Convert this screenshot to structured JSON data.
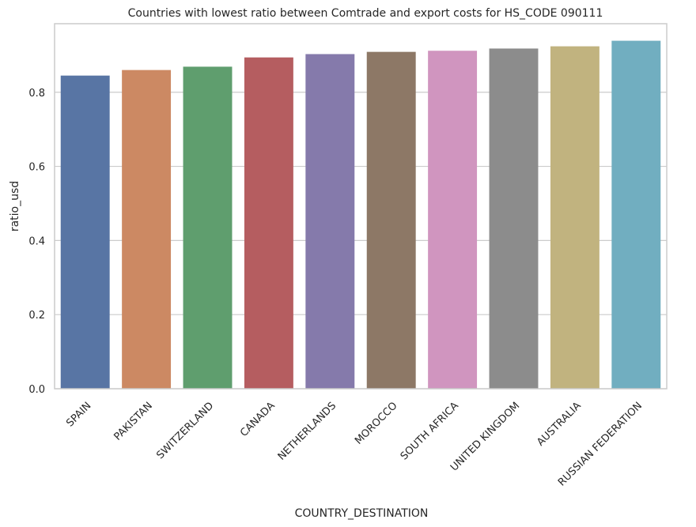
{
  "chart_data": {
    "type": "bar",
    "title": "Countries with lowest ratio between Comtrade and export costs for HS_CODE 090111",
    "xlabel": "COUNTRY_DESTINATION",
    "ylabel": "ratio_usd",
    "ylim": [
      0,
      0.985
    ],
    "yticks": [
      0.0,
      0.2,
      0.4,
      0.6,
      0.8
    ],
    "ytick_labels": [
      "0.0",
      "0.2",
      "0.4",
      "0.6",
      "0.8"
    ],
    "grid": true,
    "categories": [
      "SPAIN",
      "PAKISTAN",
      "SWITZERLAND",
      "CANADA",
      "NETHERLANDS",
      "MOROCCO",
      "SOUTH AFRICA",
      "UNITED KINGDOM",
      "AUSTRALIA",
      "RUSSIAN FEDERATION"
    ],
    "values": [
      0.845,
      0.86,
      0.869,
      0.894,
      0.903,
      0.909,
      0.912,
      0.918,
      0.924,
      0.939
    ],
    "colors": [
      "#5875a4",
      "#cc8963",
      "#5f9e6e",
      "#b55d60",
      "#857aab",
      "#8d7866",
      "#d095bf",
      "#8c8c8c",
      "#c1b37f",
      "#71aec0"
    ]
  }
}
